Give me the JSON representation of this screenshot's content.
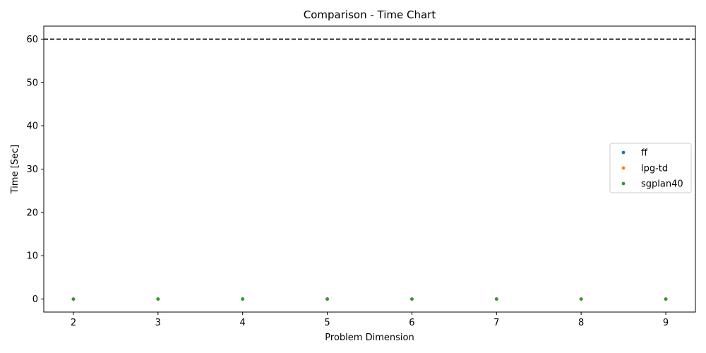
{
  "chart_data": {
    "type": "scatter",
    "title": "Comparison - Time Chart",
    "xlabel": "Problem Dimension",
    "ylabel": "Time [Sec]",
    "xlim": [
      1.65,
      9.35
    ],
    "ylim": [
      -3,
      63
    ],
    "xticks": [
      2,
      3,
      4,
      5,
      6,
      7,
      8,
      9
    ],
    "yticks": [
      0,
      10,
      20,
      30,
      40,
      50,
      60
    ],
    "grid": false,
    "legend_position": "center-right",
    "reference_line": {
      "y": 60,
      "style": "dashed",
      "color": "#000000"
    },
    "series": [
      {
        "name": "ff",
        "color": "#1f77b4",
        "x": [
          2,
          3,
          4,
          5,
          6,
          7,
          8,
          9
        ],
        "y": [
          0,
          0,
          0,
          0,
          0,
          0,
          0,
          0
        ]
      },
      {
        "name": "lpg-td",
        "color": "#ff7f0e",
        "x": [
          2,
          3,
          4,
          5,
          6,
          7,
          8,
          9
        ],
        "y": [
          0,
          0,
          0,
          0,
          0,
          0,
          0,
          0
        ]
      },
      {
        "name": "sgplan40",
        "color": "#2ca02c",
        "x": [
          2,
          3,
          4,
          5,
          6,
          7,
          8,
          9
        ],
        "y": [
          0,
          0,
          0,
          0,
          0,
          0,
          0,
          0
        ]
      }
    ]
  }
}
